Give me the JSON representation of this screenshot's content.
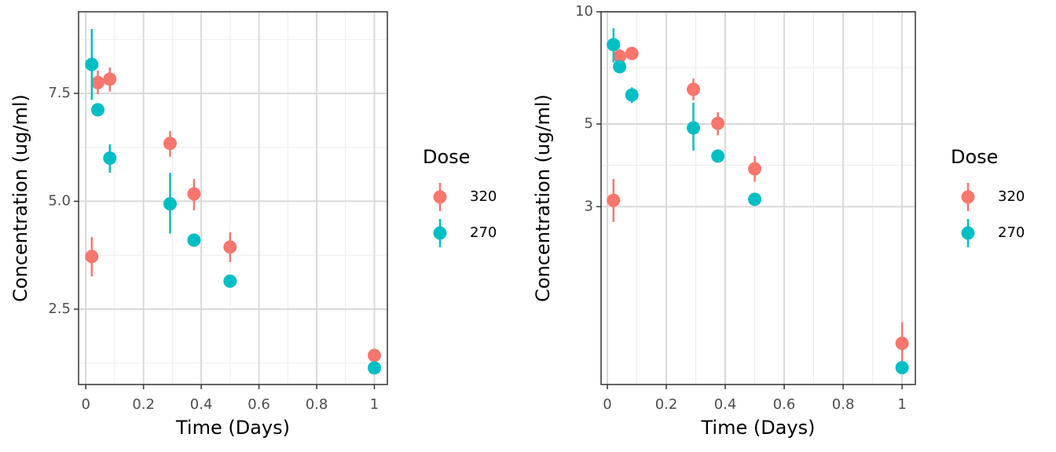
{
  "chart_data": [
    {
      "type": "scatter",
      "x_label": "Time (Days)",
      "y_label": "Concentration (ug/ml)",
      "legend_title": "Dose",
      "log_y": false,
      "grid": true,
      "xlim": [
        -0.025,
        1.045
      ],
      "xticks": [
        0,
        0.2,
        0.4,
        0.6,
        0.8,
        1
      ],
      "ylim": [
        0.755,
        9.39
      ],
      "yticks": [
        2.5,
        {
          "value": 5,
          "label": "5.0"
        },
        7.5
      ],
      "x": [
        0.0208,
        0.0417,
        0.0833,
        0.292,
        0.375,
        0.5,
        1
      ],
      "series": [
        {
          "name": "320",
          "color": "#F8766D",
          "values": [
            3.72,
            7.75,
            7.83,
            6.34,
            5.17,
            3.94,
            1.43
          ],
          "lower": [
            3.26,
            7.48,
            7.54,
            6.03,
            4.79,
            3.59,
            1.3
          ],
          "upper": [
            4.17,
            8.03,
            8.1,
            6.63,
            5.52,
            4.28,
            1.55
          ]
        },
        {
          "name": "270",
          "color": "#00BFC4",
          "values": [
            8.17,
            7.12,
            6.0,
            4.94,
            4.1,
            3.15,
            1.14
          ],
          "lower": [
            7.35,
            6.97,
            5.66,
            4.25,
            3.99,
            3.05,
            1.01
          ],
          "upper": [
            8.99,
            7.26,
            6.32,
            5.66,
            4.21,
            3.26,
            1.26
          ]
        }
      ]
    },
    {
      "type": "scatter",
      "x_label": "Time (Days)",
      "y_label": "Concentration (ug/ml)",
      "legend_title": "Dose",
      "log_y": true,
      "grid": true,
      "xlim": [
        -0.0213,
        1.045
      ],
      "xticks": [
        0,
        0.2,
        0.4,
        0.6,
        0.8,
        1
      ],
      "ylim": [
        1,
        10
      ],
      "yticks": [
        3,
        5,
        10
      ],
      "x": [
        0.0208,
        0.0417,
        0.0833,
        0.292,
        0.375,
        0.5,
        1
      ],
      "series": [
        {
          "name": "320",
          "color": "#F8766D",
          "values": [
            3.12,
            7.59,
            7.73,
            6.19,
            5.02,
            3.79,
            1.29
          ],
          "lower": [
            2.73,
            7.23,
            7.44,
            5.79,
            4.66,
            3.5,
            1.13
          ],
          "upper": [
            3.56,
            7.95,
            8.03,
            6.62,
            5.38,
            4.1,
            1.47
          ]
        },
        {
          "name": "270",
          "color": "#00BFC4",
          "values": [
            8.16,
            7.12,
            5.98,
            4.88,
            4.1,
            3.14,
            1.11
          ],
          "lower": [
            7.31,
            6.88,
            5.69,
            4.24,
            3.98,
            3.05,
            1.08
          ],
          "upper": [
            9.03,
            7.37,
            6.27,
            5.7,
            4.22,
            3.23,
            1.15
          ]
        }
      ]
    }
  ]
}
